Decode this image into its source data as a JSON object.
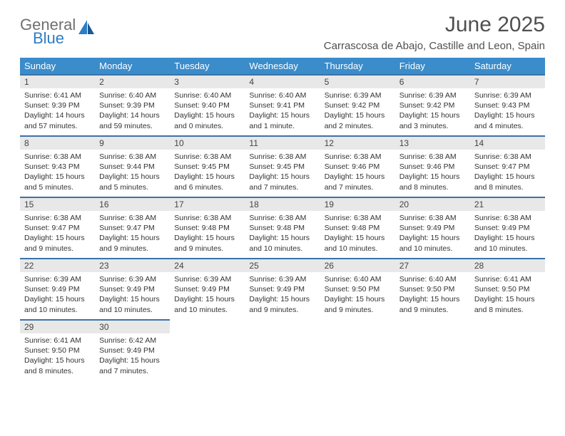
{
  "logo": {
    "line1": "General",
    "line2": "Blue"
  },
  "header": {
    "month_title": "June 2025",
    "location": "Carrascosa de Abajo, Castille and Leon, Spain"
  },
  "colors": {
    "header_bar": "#3a8ccb",
    "week_divider": "#3a73a8",
    "daynum_bg": "#e8e8e8",
    "logo_gray": "#6f6f6f",
    "logo_blue": "#2c7dc4",
    "text": "#333333"
  },
  "day_names": [
    "Sunday",
    "Monday",
    "Tuesday",
    "Wednesday",
    "Thursday",
    "Friday",
    "Saturday"
  ],
  "weeks": [
    [
      {
        "n": "1",
        "sr": "6:41 AM",
        "ss": "9:39 PM",
        "dl": "14 hours and 57 minutes."
      },
      {
        "n": "2",
        "sr": "6:40 AM",
        "ss": "9:39 PM",
        "dl": "14 hours and 59 minutes."
      },
      {
        "n": "3",
        "sr": "6:40 AM",
        "ss": "9:40 PM",
        "dl": "15 hours and 0 minutes."
      },
      {
        "n": "4",
        "sr": "6:40 AM",
        "ss": "9:41 PM",
        "dl": "15 hours and 1 minute."
      },
      {
        "n": "5",
        "sr": "6:39 AM",
        "ss": "9:42 PM",
        "dl": "15 hours and 2 minutes."
      },
      {
        "n": "6",
        "sr": "6:39 AM",
        "ss": "9:42 PM",
        "dl": "15 hours and 3 minutes."
      },
      {
        "n": "7",
        "sr": "6:39 AM",
        "ss": "9:43 PM",
        "dl": "15 hours and 4 minutes."
      }
    ],
    [
      {
        "n": "8",
        "sr": "6:38 AM",
        "ss": "9:43 PM",
        "dl": "15 hours and 5 minutes."
      },
      {
        "n": "9",
        "sr": "6:38 AM",
        "ss": "9:44 PM",
        "dl": "15 hours and 5 minutes."
      },
      {
        "n": "10",
        "sr": "6:38 AM",
        "ss": "9:45 PM",
        "dl": "15 hours and 6 minutes."
      },
      {
        "n": "11",
        "sr": "6:38 AM",
        "ss": "9:45 PM",
        "dl": "15 hours and 7 minutes."
      },
      {
        "n": "12",
        "sr": "6:38 AM",
        "ss": "9:46 PM",
        "dl": "15 hours and 7 minutes."
      },
      {
        "n": "13",
        "sr": "6:38 AM",
        "ss": "9:46 PM",
        "dl": "15 hours and 8 minutes."
      },
      {
        "n": "14",
        "sr": "6:38 AM",
        "ss": "9:47 PM",
        "dl": "15 hours and 8 minutes."
      }
    ],
    [
      {
        "n": "15",
        "sr": "6:38 AM",
        "ss": "9:47 PM",
        "dl": "15 hours and 9 minutes."
      },
      {
        "n": "16",
        "sr": "6:38 AM",
        "ss": "9:47 PM",
        "dl": "15 hours and 9 minutes."
      },
      {
        "n": "17",
        "sr": "6:38 AM",
        "ss": "9:48 PM",
        "dl": "15 hours and 9 minutes."
      },
      {
        "n": "18",
        "sr": "6:38 AM",
        "ss": "9:48 PM",
        "dl": "15 hours and 10 minutes."
      },
      {
        "n": "19",
        "sr": "6:38 AM",
        "ss": "9:48 PM",
        "dl": "15 hours and 10 minutes."
      },
      {
        "n": "20",
        "sr": "6:38 AM",
        "ss": "9:49 PM",
        "dl": "15 hours and 10 minutes."
      },
      {
        "n": "21",
        "sr": "6:38 AM",
        "ss": "9:49 PM",
        "dl": "15 hours and 10 minutes."
      }
    ],
    [
      {
        "n": "22",
        "sr": "6:39 AM",
        "ss": "9:49 PM",
        "dl": "15 hours and 10 minutes."
      },
      {
        "n": "23",
        "sr": "6:39 AM",
        "ss": "9:49 PM",
        "dl": "15 hours and 10 minutes."
      },
      {
        "n": "24",
        "sr": "6:39 AM",
        "ss": "9:49 PM",
        "dl": "15 hours and 10 minutes."
      },
      {
        "n": "25",
        "sr": "6:39 AM",
        "ss": "9:49 PM",
        "dl": "15 hours and 9 minutes."
      },
      {
        "n": "26",
        "sr": "6:40 AM",
        "ss": "9:50 PM",
        "dl": "15 hours and 9 minutes."
      },
      {
        "n": "27",
        "sr": "6:40 AM",
        "ss": "9:50 PM",
        "dl": "15 hours and 9 minutes."
      },
      {
        "n": "28",
        "sr": "6:41 AM",
        "ss": "9:50 PM",
        "dl": "15 hours and 8 minutes."
      }
    ],
    [
      {
        "n": "29",
        "sr": "6:41 AM",
        "ss": "9:50 PM",
        "dl": "15 hours and 8 minutes."
      },
      {
        "n": "30",
        "sr": "6:42 AM",
        "ss": "9:49 PM",
        "dl": "15 hours and 7 minutes."
      },
      null,
      null,
      null,
      null,
      null
    ]
  ],
  "labels": {
    "sunrise_prefix": "Sunrise: ",
    "sunset_prefix": "Sunset: ",
    "daylight_prefix": "Daylight: "
  }
}
